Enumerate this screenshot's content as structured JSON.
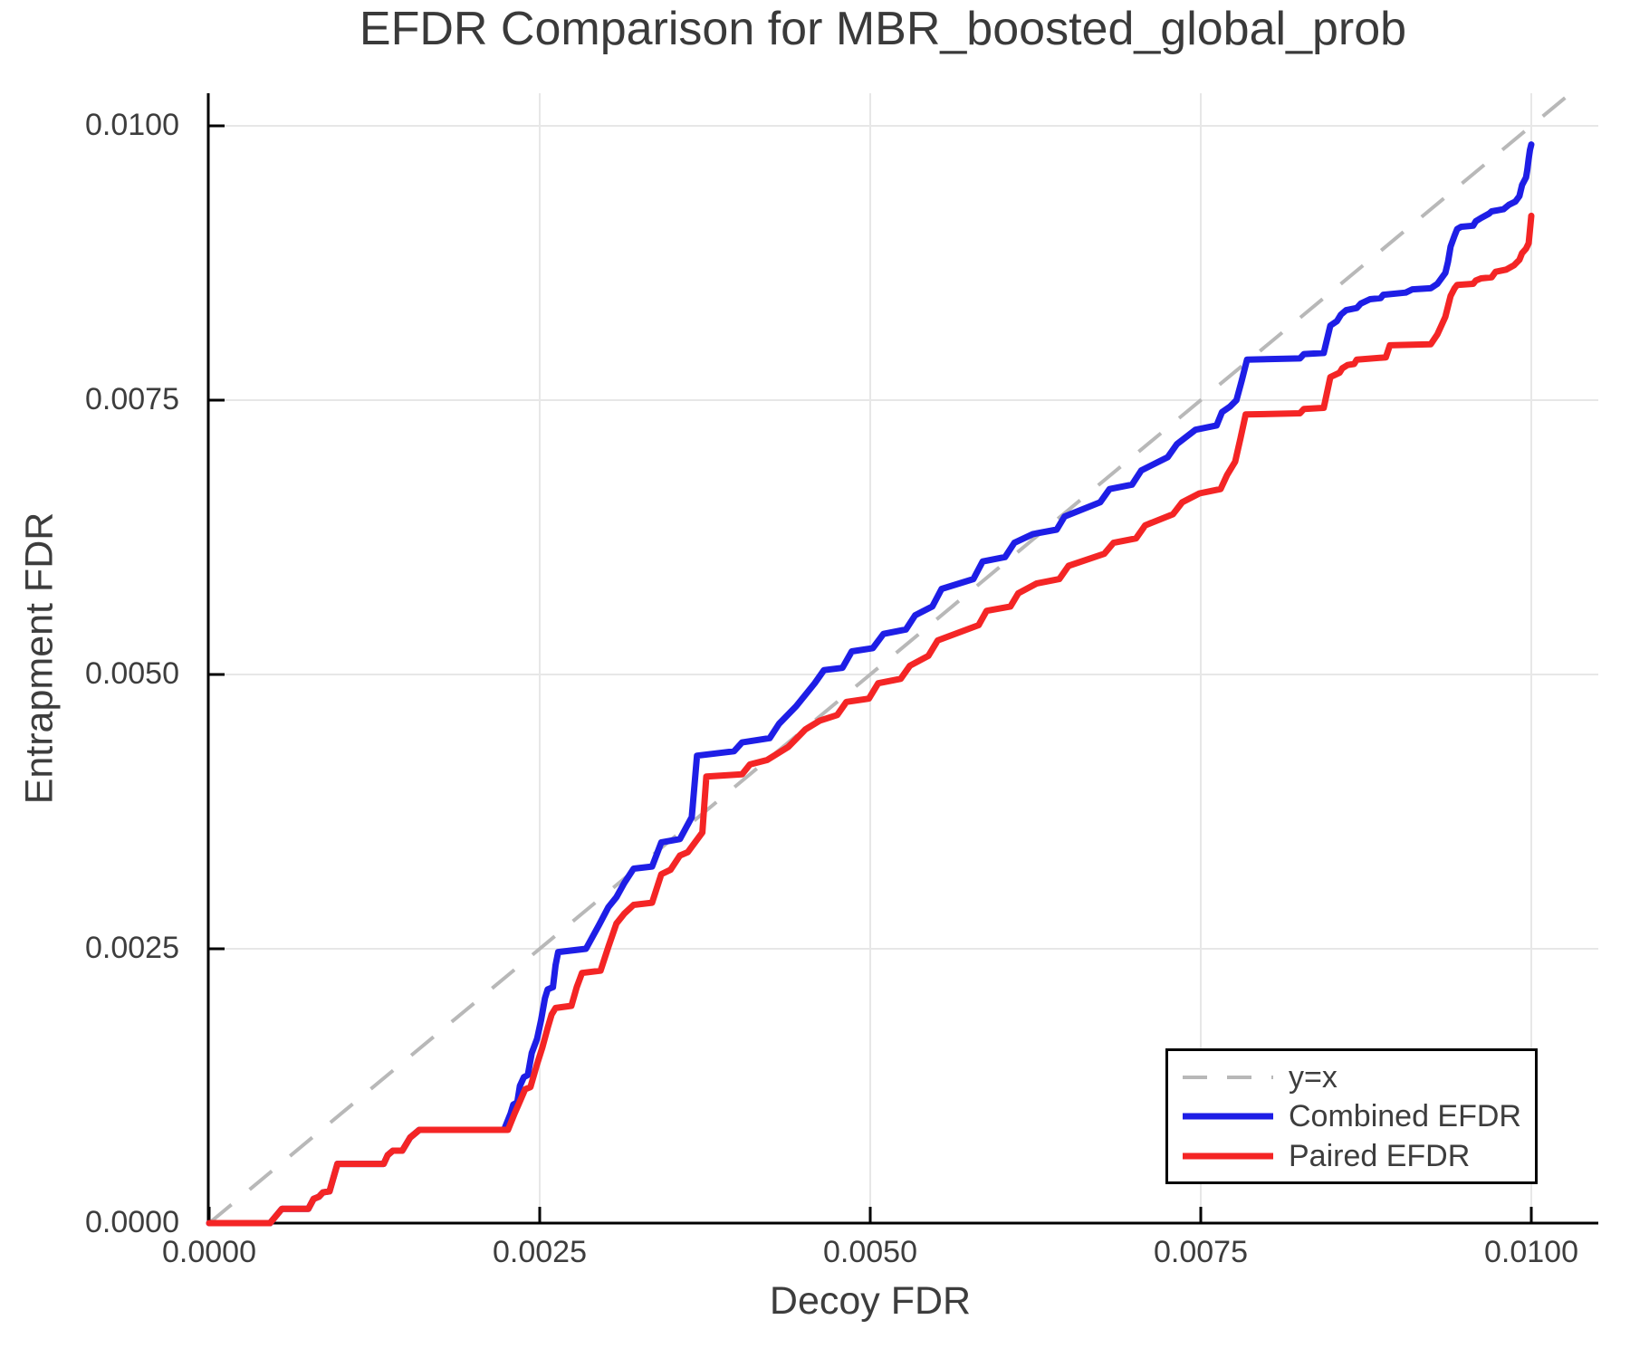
{
  "chart_data": {
    "type": "line",
    "title": "EFDR Comparison for MBR_boosted_global_prob",
    "xlabel": "Decoy FDR",
    "ylabel": "Entrapment FDR",
    "xlim": [
      0,
      0.0105
    ],
    "ylim": [
      0,
      0.0103
    ],
    "grid": true,
    "legend_position": "bottom-right",
    "x_ticks": {
      "values": [
        0,
        0.0025,
        0.005,
        0.0075,
        0.01
      ],
      "labels": [
        "0.0000",
        "0.0025",
        "0.0050",
        "0.0075",
        "0.0100"
      ]
    },
    "y_ticks": {
      "values": [
        0,
        0.0025,
        0.005,
        0.0075,
        0.01
      ],
      "labels": [
        "0.0000",
        "0.0025",
        "0.0050",
        "0.0075",
        "0.0100"
      ]
    },
    "colors": {
      "grid": "#e7e7e7",
      "spine": "#000000",
      "reference": "#b8b8b8",
      "text": "#3d3d3d",
      "combined": "#1e1ee6",
      "paired": "#f42525"
    },
    "reference_line": {
      "name": "y=x",
      "style": "dashed",
      "from": [
        0,
        0
      ],
      "to": [
        0.0103,
        0.0103
      ]
    },
    "series": [
      {
        "name": "Combined EFDR",
        "color": "#1e1ee6",
        "points": [
          [
            0,
            0
          ],
          [
            0.00046,
            0
          ],
          [
            0.00055,
            0.00013
          ],
          [
            0.00075,
            0.00013
          ],
          [
            0.00079,
            0.00022
          ],
          [
            0.00083,
            0.00024
          ],
          [
            0.00086,
            0.00028
          ],
          [
            0.00091,
            0.00029
          ],
          [
            0.00097,
            0.00054
          ],
          [
            0.00132,
            0.00054
          ],
          [
            0.00135,
            0.00062
          ],
          [
            0.00139,
            0.00066
          ],
          [
            0.00146,
            0.00066
          ],
          [
            0.00152,
            0.00078
          ],
          [
            0.00159,
            0.00085
          ],
          [
            0.00223,
            0.00085
          ],
          [
            0.00228,
            0.001
          ],
          [
            0.0023,
            0.00108
          ],
          [
            0.00233,
            0.0011
          ],
          [
            0.00235,
            0.00125
          ],
          [
            0.00238,
            0.00133
          ],
          [
            0.00241,
            0.00135
          ],
          [
            0.00244,
            0.00155
          ],
          [
            0.00248,
            0.00168
          ],
          [
            0.00251,
            0.00185
          ],
          [
            0.00254,
            0.00205
          ],
          [
            0.00256,
            0.00213
          ],
          [
            0.0026,
            0.00215
          ],
          [
            0.00262,
            0.00235
          ],
          [
            0.00264,
            0.00247
          ],
          [
            0.00285,
            0.0025
          ],
          [
            0.00295,
            0.00272
          ],
          [
            0.00302,
            0.00288
          ],
          [
            0.00308,
            0.00297
          ],
          [
            0.00314,
            0.0031
          ],
          [
            0.00321,
            0.00323
          ],
          [
            0.00335,
            0.00325
          ],
          [
            0.00342,
            0.00347
          ],
          [
            0.00356,
            0.0035
          ],
          [
            0.00365,
            0.0037
          ],
          [
            0.00369,
            0.00426
          ],
          [
            0.00397,
            0.0043
          ],
          [
            0.00403,
            0.00438
          ],
          [
            0.00424,
            0.00442
          ],
          [
            0.00431,
            0.00455
          ],
          [
            0.00444,
            0.00471
          ],
          [
            0.00458,
            0.00492
          ],
          [
            0.00465,
            0.00504
          ],
          [
            0.00479,
            0.00506
          ],
          [
            0.00486,
            0.00521
          ],
          [
            0.00502,
            0.00524
          ],
          [
            0.0051,
            0.00537
          ],
          [
            0.00527,
            0.00541
          ],
          [
            0.00534,
            0.00554
          ],
          [
            0.00547,
            0.00562
          ],
          [
            0.00554,
            0.00578
          ],
          [
            0.00578,
            0.00587
          ],
          [
            0.00585,
            0.00603
          ],
          [
            0.00602,
            0.00607
          ],
          [
            0.00609,
            0.0062
          ],
          [
            0.00623,
            0.00628
          ],
          [
            0.00641,
            0.00632
          ],
          [
            0.00647,
            0.00644
          ],
          [
            0.00674,
            0.00657
          ],
          [
            0.00681,
            0.00669
          ],
          [
            0.00698,
            0.00673
          ],
          [
            0.00705,
            0.00686
          ],
          [
            0.00725,
            0.00698
          ],
          [
            0.00732,
            0.0071
          ],
          [
            0.00746,
            0.00723
          ],
          [
            0.00762,
            0.00727
          ],
          [
            0.00766,
            0.00739
          ],
          [
            0.00772,
            0.00744
          ],
          [
            0.00777,
            0.0075
          ],
          [
            0.00781,
            0.00768
          ],
          [
            0.00785,
            0.00787
          ],
          [
            0.00825,
            0.00788
          ],
          [
            0.00828,
            0.00792
          ],
          [
            0.00843,
            0.00793
          ],
          [
            0.00848,
            0.00818
          ],
          [
            0.00853,
            0.00822
          ],
          [
            0.00856,
            0.00828
          ],
          [
            0.0086,
            0.00832
          ],
          [
            0.00868,
            0.00834
          ],
          [
            0.00871,
            0.00838
          ],
          [
            0.00878,
            0.00842
          ],
          [
            0.00886,
            0.00843
          ],
          [
            0.00888,
            0.00846
          ],
          [
            0.00905,
            0.00848
          ],
          [
            0.0091,
            0.00851
          ],
          [
            0.00924,
            0.00852
          ],
          [
            0.00929,
            0.00856
          ],
          [
            0.00935,
            0.00866
          ],
          [
            0.00937,
            0.00876
          ],
          [
            0.00939,
            0.0089
          ],
          [
            0.00942,
            0.009
          ],
          [
            0.00944,
            0.00906
          ],
          [
            0.00947,
            0.00908
          ],
          [
            0.00956,
            0.00909
          ],
          [
            0.00958,
            0.00913
          ],
          [
            0.00962,
            0.00916
          ],
          [
            0.00968,
            0.0092
          ],
          [
            0.0097,
            0.00922
          ],
          [
            0.00979,
            0.00924
          ],
          [
            0.00983,
            0.00928
          ],
          [
            0.00988,
            0.00931
          ],
          [
            0.00991,
            0.00936
          ],
          [
            0.00993,
            0.00946
          ],
          [
            0.00996,
            0.00953
          ],
          [
            0.00997,
            0.0096
          ],
          [
            0.00998,
            0.0097
          ],
          [
            0.00999,
            0.00978
          ],
          [
            0.01,
            0.00983
          ]
        ]
      },
      {
        "name": "Paired EFDR",
        "color": "#f42525",
        "points": [
          [
            0,
            0
          ],
          [
            0.00046,
            0
          ],
          [
            0.00055,
            0.00013
          ],
          [
            0.00075,
            0.00013
          ],
          [
            0.00079,
            0.00022
          ],
          [
            0.00083,
            0.00024
          ],
          [
            0.00086,
            0.00028
          ],
          [
            0.00091,
            0.00029
          ],
          [
            0.00097,
            0.00054
          ],
          [
            0.00132,
            0.00054
          ],
          [
            0.00135,
            0.00062
          ],
          [
            0.00139,
            0.00066
          ],
          [
            0.00146,
            0.00066
          ],
          [
            0.00152,
            0.00078
          ],
          [
            0.00159,
            0.00085
          ],
          [
            0.00226,
            0.00085
          ],
          [
            0.00231,
            0.001
          ],
          [
            0.00234,
            0.00108
          ],
          [
            0.00239,
            0.00122
          ],
          [
            0.00243,
            0.00124
          ],
          [
            0.00248,
            0.00145
          ],
          [
            0.00252,
            0.0016
          ],
          [
            0.00256,
            0.00178
          ],
          [
            0.00259,
            0.0019
          ],
          [
            0.00262,
            0.00196
          ],
          [
            0.00274,
            0.00198
          ],
          [
            0.00278,
            0.00215
          ],
          [
            0.00282,
            0.00228
          ],
          [
            0.00296,
            0.0023
          ],
          [
            0.00302,
            0.00252
          ],
          [
            0.00308,
            0.00273
          ],
          [
            0.00314,
            0.00282
          ],
          [
            0.00321,
            0.0029
          ],
          [
            0.00335,
            0.00292
          ],
          [
            0.00342,
            0.00318
          ],
          [
            0.00349,
            0.00322
          ],
          [
            0.00356,
            0.00335
          ],
          [
            0.00362,
            0.00338
          ],
          [
            0.00373,
            0.00356
          ],
          [
            0.00376,
            0.00407
          ],
          [
            0.00403,
            0.00409
          ],
          [
            0.00409,
            0.00418
          ],
          [
            0.00422,
            0.00422
          ],
          [
            0.00438,
            0.00434
          ],
          [
            0.00451,
            0.0045
          ],
          [
            0.00462,
            0.00458
          ],
          [
            0.00475,
            0.00463
          ],
          [
            0.00482,
            0.00475
          ],
          [
            0.00499,
            0.00478
          ],
          [
            0.00506,
            0.00492
          ],
          [
            0.00523,
            0.00496
          ],
          [
            0.0053,
            0.00508
          ],
          [
            0.00544,
            0.00517
          ],
          [
            0.00551,
            0.00531
          ],
          [
            0.00582,
            0.00545
          ],
          [
            0.00588,
            0.00558
          ],
          [
            0.00606,
            0.00562
          ],
          [
            0.00612,
            0.00574
          ],
          [
            0.00626,
            0.00583
          ],
          [
            0.00643,
            0.00587
          ],
          [
            0.0065,
            0.00599
          ],
          [
            0.00677,
            0.0061
          ],
          [
            0.00684,
            0.0062
          ],
          [
            0.00701,
            0.00624
          ],
          [
            0.00708,
            0.00636
          ],
          [
            0.00729,
            0.00646
          ],
          [
            0.00736,
            0.00657
          ],
          [
            0.00749,
            0.00665
          ],
          [
            0.00765,
            0.00669
          ],
          [
            0.0077,
            0.00682
          ],
          [
            0.00776,
            0.00694
          ],
          [
            0.0078,
            0.00715
          ],
          [
            0.00784,
            0.00737
          ],
          [
            0.00825,
            0.00738
          ],
          [
            0.00828,
            0.00742
          ],
          [
            0.00843,
            0.00743
          ],
          [
            0.00848,
            0.00771
          ],
          [
            0.00855,
            0.00775
          ],
          [
            0.00857,
            0.00779
          ],
          [
            0.00861,
            0.00782
          ],
          [
            0.00866,
            0.00783
          ],
          [
            0.00868,
            0.00787
          ],
          [
            0.0089,
            0.00789
          ],
          [
            0.00893,
            0.008
          ],
          [
            0.00924,
            0.00801
          ],
          [
            0.00929,
            0.0081
          ],
          [
            0.00935,
            0.00826
          ],
          [
            0.00939,
            0.00845
          ],
          [
            0.00942,
            0.00852
          ],
          [
            0.00944,
            0.00855
          ],
          [
            0.00956,
            0.00856
          ],
          [
            0.00958,
            0.00859
          ],
          [
            0.00962,
            0.00861
          ],
          [
            0.0097,
            0.00862
          ],
          [
            0.00973,
            0.00867
          ],
          [
            0.00981,
            0.00869
          ],
          [
            0.00987,
            0.00873
          ],
          [
            0.00991,
            0.00878
          ],
          [
            0.00993,
            0.00884
          ],
          [
            0.00996,
            0.00888
          ],
          [
            0.00998,
            0.00893
          ],
          [
            0.00999,
            0.00905
          ],
          [
            0.01,
            0.00918
          ]
        ]
      }
    ]
  },
  "legend": {
    "items": [
      {
        "label": "y=x"
      },
      {
        "label": "Combined EFDR"
      },
      {
        "label": "Paired EFDR"
      }
    ]
  }
}
